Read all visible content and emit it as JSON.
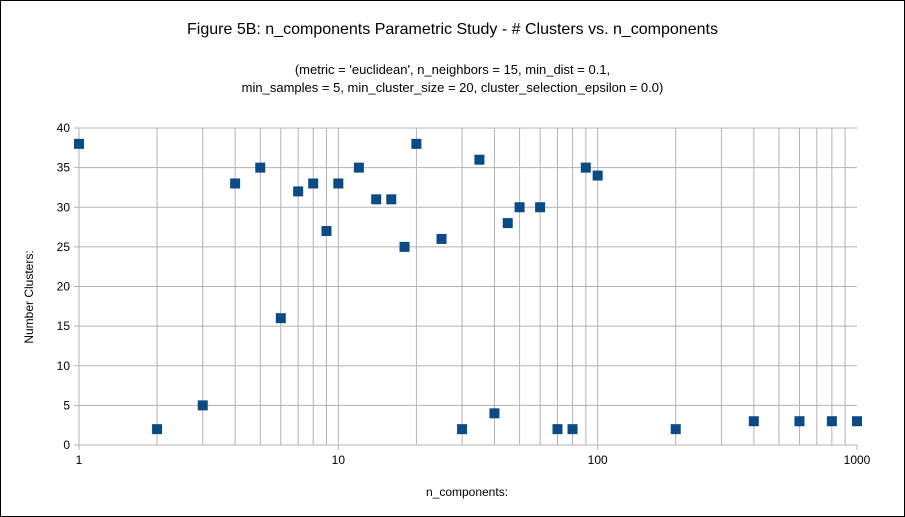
{
  "chart_data": {
    "type": "scatter",
    "title": "Figure 5B: n_components Parametric Study - # Clusters vs. n_components",
    "subtitle_lines": [
      "(metric = 'euclidean', n_neighbors = 15, min_dist = 0.1,",
      "min_samples = 5, min_cluster_size = 20, cluster_selection_epsilon = 0.0)"
    ],
    "xlabel": "n_components:",
    "ylabel": "Number Clusters:",
    "x_scale": "log",
    "xlim": [
      1,
      1000
    ],
    "ylim": [
      0,
      40
    ],
    "x_tick_labels": [
      "1",
      "10",
      "100",
      "1000"
    ],
    "y_tick_labels": [
      "0",
      "5",
      "10",
      "15",
      "20",
      "25",
      "30",
      "35",
      "40"
    ],
    "grid": true,
    "legend": "none",
    "marker": "square",
    "marker_color": "#0b4a86",
    "points": [
      {
        "x": 1,
        "y": 38
      },
      {
        "x": 2,
        "y": 2
      },
      {
        "x": 3,
        "y": 5
      },
      {
        "x": 4,
        "y": 33
      },
      {
        "x": 5,
        "y": 35
      },
      {
        "x": 6,
        "y": 16
      },
      {
        "x": 7,
        "y": 32
      },
      {
        "x": 8,
        "y": 33
      },
      {
        "x": 9,
        "y": 27
      },
      {
        "x": 10,
        "y": 33
      },
      {
        "x": 12,
        "y": 35
      },
      {
        "x": 14,
        "y": 31
      },
      {
        "x": 16,
        "y": 31
      },
      {
        "x": 18,
        "y": 25
      },
      {
        "x": 20,
        "y": 38
      },
      {
        "x": 25,
        "y": 26
      },
      {
        "x": 30,
        "y": 2
      },
      {
        "x": 35,
        "y": 36
      },
      {
        "x": 40,
        "y": 4
      },
      {
        "x": 45,
        "y": 28
      },
      {
        "x": 50,
        "y": 30
      },
      {
        "x": 60,
        "y": 30
      },
      {
        "x": 70,
        "y": 2
      },
      {
        "x": 80,
        "y": 2
      },
      {
        "x": 90,
        "y": 35
      },
      {
        "x": 100,
        "y": 34
      },
      {
        "x": 200,
        "y": 2
      },
      {
        "x": 400,
        "y": 3
      },
      {
        "x": 600,
        "y": 3
      },
      {
        "x": 800,
        "y": 3
      },
      {
        "x": 1000,
        "y": 3
      }
    ]
  }
}
